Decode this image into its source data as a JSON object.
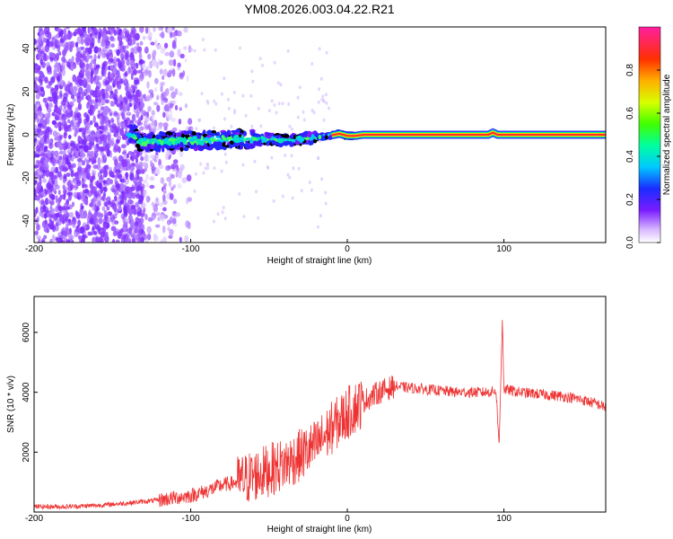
{
  "title": "YM08.2026.003.04.22.R21",
  "chart_data": [
    {
      "type": "heatmap",
      "name": "spectrogram",
      "xlabel": "Height of straight line (km)",
      "ylabel": "Frequency (Hz)",
      "xlim": [
        -200,
        165
      ],
      "ylim": [
        -50,
        50
      ],
      "xticks": [
        -200,
        -100,
        0,
        100
      ],
      "yticks": [
        -40,
        -20,
        0,
        20,
        40
      ],
      "colorbar": {
        "label": "Normalized spectral amplitude",
        "range": [
          0,
          1
        ],
        "ticks": [
          0.0,
          0.2,
          0.4,
          0.6,
          0.8
        ]
      },
      "ridge": [
        {
          "x": -135,
          "f": -3.5
        },
        {
          "x": -110,
          "f": -3
        },
        {
          "x": -90,
          "f": -2.5
        },
        {
          "x": -70,
          "f": -2
        },
        {
          "x": -50,
          "f": -2
        },
        {
          "x": -35,
          "f": -2.5
        },
        {
          "x": -25,
          "f": -1.5
        },
        {
          "x": -15,
          "f": -1
        },
        {
          "x": -5,
          "f": 0.5
        },
        {
          "x": 0,
          "f": -0.5
        },
        {
          "x": 5,
          "f": -0.5
        },
        {
          "x": 10,
          "f": 0
        },
        {
          "x": 50,
          "f": 0
        },
        {
          "x": 90,
          "f": 0
        },
        {
          "x": 93,
          "f": 1
        },
        {
          "x": 96,
          "f": 0
        },
        {
          "x": 165,
          "f": 0
        }
      ]
    },
    {
      "type": "line",
      "name": "snr",
      "xlabel": "Height of straight line (km)",
      "ylabel": "SNR (10 * v/v)",
      "xlim": [
        -200,
        165
      ],
      "ylim": [
        0,
        7200
      ],
      "xticks": [
        -200,
        -100,
        0,
        100
      ],
      "yticks": [
        2000,
        4000,
        6000
      ],
      "color": "#ee3333",
      "series": [
        {
          "name": "SNR",
          "x": [
            -200,
            -180,
            -160,
            -140,
            -120,
            -100,
            -90,
            -80,
            -70,
            -60,
            -50,
            -40,
            -30,
            -20,
            -10,
            0,
            10,
            20,
            30,
            40,
            50,
            60,
            70,
            80,
            90,
            95,
            97,
            99,
            100,
            105,
            110,
            120,
            130,
            140,
            150,
            160,
            165
          ],
          "y": [
            180,
            180,
            220,
            300,
            400,
            550,
            700,
            900,
            1000,
            1200,
            1400,
            1600,
            1900,
            2200,
            2800,
            3300,
            3700,
            4000,
            4200,
            4150,
            4100,
            4050,
            4000,
            4000,
            4000,
            4050,
            2200,
            6500,
            4100,
            4050,
            4000,
            3950,
            3900,
            3850,
            3750,
            3600,
            3500
          ]
        }
      ]
    }
  ]
}
